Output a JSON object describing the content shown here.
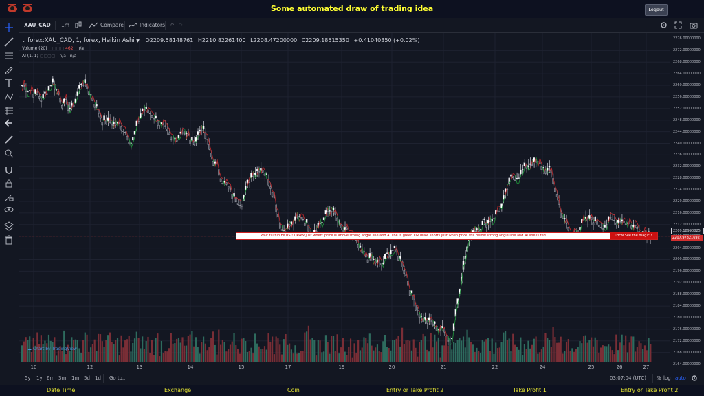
{
  "app": {
    "title": "Some automated draw of trading idea",
    "logout_label": "Logout"
  },
  "toolbar": {
    "symbol": "XAU_CAD",
    "interval": "1m",
    "compare_label": "Compare",
    "indicators_label": "Indicators"
  },
  "legend": {
    "series_title": "forex:XAU_CAD, 1, forex, Heikin Ashi",
    "open": "O2209.58148761",
    "high": "H2210.82261400",
    "low": "L2208.47200000",
    "close": "C2209.18515350",
    "change": "+0.41040350 (+0.02%)",
    "volume_label": "Volume (20)",
    "volume_value": "462",
    "volume_extra": "n/a",
    "ai_label": "AI (1, 1)",
    "ai_value1": "n/a",
    "ai_value2": "n/a"
  },
  "banner": {
    "text": "Wait till flip ENDS !    DRAW just when:  price is above strong angle line and AI line is green         OR         draw shorts just when price still below strong angle line and AI line is red.",
    "magic": "THEN See the magic!!"
  },
  "y_axis": {
    "ticks": [
      "2276.00000000",
      "2272.00000000",
      "2268.00000000",
      "2264.00000000",
      "2260.00000000",
      "2256.00000000",
      "2252.00000000",
      "2248.00000000",
      "2244.00000000",
      "2240.00000000",
      "2236.00000000",
      "2232.00000000",
      "2228.00000000",
      "2224.00000000",
      "2220.00000000",
      "2216.00000000",
      "2212.00000000",
      "2208.00000000",
      "2204.00000000",
      "2200.00000000",
      "2196.00000000",
      "2192.00000000",
      "2188.00000000",
      "2184.00000000",
      "2180.00000000",
      "2176.00000000",
      "2172.00000000",
      "2168.00000000",
      "2164.00000000"
    ],
    "last_price": "2209.18990825",
    "line_price": "2207.97821692"
  },
  "x_axis": {
    "ticks": [
      "10",
      "12",
      "13",
      "14",
      "15",
      "17",
      "19",
      "20",
      "21",
      "22",
      "24",
      "25",
      "26",
      "27"
    ]
  },
  "bottom_bar": {
    "ranges": [
      "5y",
      "1y",
      "6m",
      "3m",
      "1m",
      "5d",
      "1d"
    ],
    "goto": "Go to...",
    "time": "03:07:04 (UTC)",
    "percent": "%",
    "log": "log",
    "auto": "auto"
  },
  "watermark": "Chart by TradingView",
  "footer": {
    "items": [
      "Date Time",
      "Exchange",
      "Coin",
      "Entry or Take Profit 2",
      "Take Profit 1",
      "Entry or Take Profit 2"
    ]
  },
  "colors": {
    "up": "#26a69a",
    "down": "#ef5350",
    "ai_green": "#1f8f3a",
    "ai_red": "#b5282c",
    "title_yellow": "#ffff33"
  },
  "chart_data": {
    "type": "candlestick",
    "symbol": "XAU_CAD",
    "ylim": [
      2162,
      2278
    ],
    "price_path": [
      2260,
      2258,
      2255,
      2262,
      2254,
      2252,
      2262,
      2256,
      2248,
      2247,
      2246,
      2240,
      2252,
      2250,
      2246,
      2240,
      2245,
      2240,
      2246,
      2235,
      2228,
      2222,
      2220,
      2230,
      2232,
      2225,
      2210,
      2212,
      2215,
      2210,
      2213,
      2218,
      2210,
      2208,
      2202,
      2200,
      2198,
      2204,
      2200,
      2188,
      2180,
      2178,
      2176,
      2172,
      2195,
      2210,
      2212,
      2214,
      2218,
      2228,
      2230,
      2234,
      2232,
      2230,
      2216,
      2208,
      2212,
      2214,
      2212,
      2213,
      2214,
      2212,
      2210,
      2209
    ]
  }
}
